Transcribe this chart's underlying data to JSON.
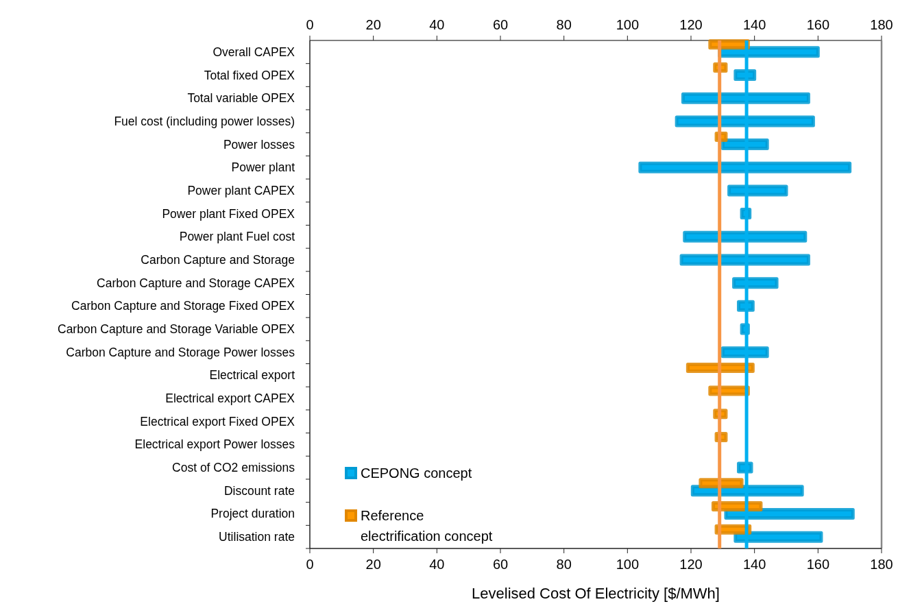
{
  "chart_data": {
    "type": "bar",
    "orientation": "horizontal",
    "xlabel": "Levelised Cost Of Electricity [$/MWh]",
    "categories": [
      "Overall CAPEX",
      "Total fixed OPEX",
      "Total variable OPEX",
      "Fuel cost (including power losses)",
      "Power losses",
      "Power plant",
      "Power plant CAPEX",
      "Power plant Fixed OPEX",
      "Power plant Fuel cost",
      "Carbon Capture and Storage",
      "Carbon Capture and Storage CAPEX",
      "Carbon Capture and Storage Fixed OPEX",
      "Carbon Capture and Storage Variable OPEX",
      "Carbon Capture and Storage Power losses",
      "Electrical export",
      "Electrical export CAPEX",
      "Electrical export Fixed OPEX",
      "Electrical export Power losses",
      "Cost of CO2 emissions",
      "Discount rate",
      "Project duration",
      "Utilisation rate"
    ],
    "series": [
      {
        "name": "CEPONG concept",
        "color": "#00b0f0",
        "base": [
          129,
          134,
          117.5,
          115.5,
          130,
          104,
          132,
          136,
          118,
          117,
          133.5,
          135,
          136,
          130,
          null,
          null,
          null,
          null,
          135,
          120.5,
          131,
          134
        ],
        "values": [
          31,
          6,
          39.5,
          43,
          14,
          66,
          18,
          2.5,
          38,
          40,
          13.5,
          4.5,
          2,
          14,
          null,
          null,
          null,
          null,
          4,
          34.5,
          40,
          27
        ]
      },
      {
        "name": "Reference electrification concept",
        "color": "#ff9900",
        "base": [
          126,
          127.5,
          null,
          null,
          128,
          null,
          null,
          null,
          null,
          null,
          null,
          null,
          null,
          null,
          119,
          126,
          127.5,
          128,
          null,
          123,
          127,
          128
        ],
        "values": [
          12,
          3.5,
          null,
          null,
          3,
          null,
          null,
          null,
          null,
          null,
          null,
          null,
          null,
          null,
          20.5,
          12,
          3.5,
          3,
          null,
          13,
          15,
          10.5
        ]
      }
    ],
    "xlim": [
      0,
      180
    ],
    "xticks": [
      0,
      20,
      40,
      60,
      80,
      100,
      120,
      140,
      160,
      180
    ],
    "x2lim": [
      0,
      180
    ],
    "x2ticks": [
      0,
      20,
      40,
      60,
      80,
      100,
      120,
      140,
      160,
      180
    ],
    "ref_lines": [
      {
        "axis": "x",
        "value": 129,
        "color": "#f79646"
      },
      {
        "axis": "x",
        "value": 137.5,
        "color": "#00b0f0"
      }
    ],
    "legend": "bottom left",
    "grid": false
  }
}
